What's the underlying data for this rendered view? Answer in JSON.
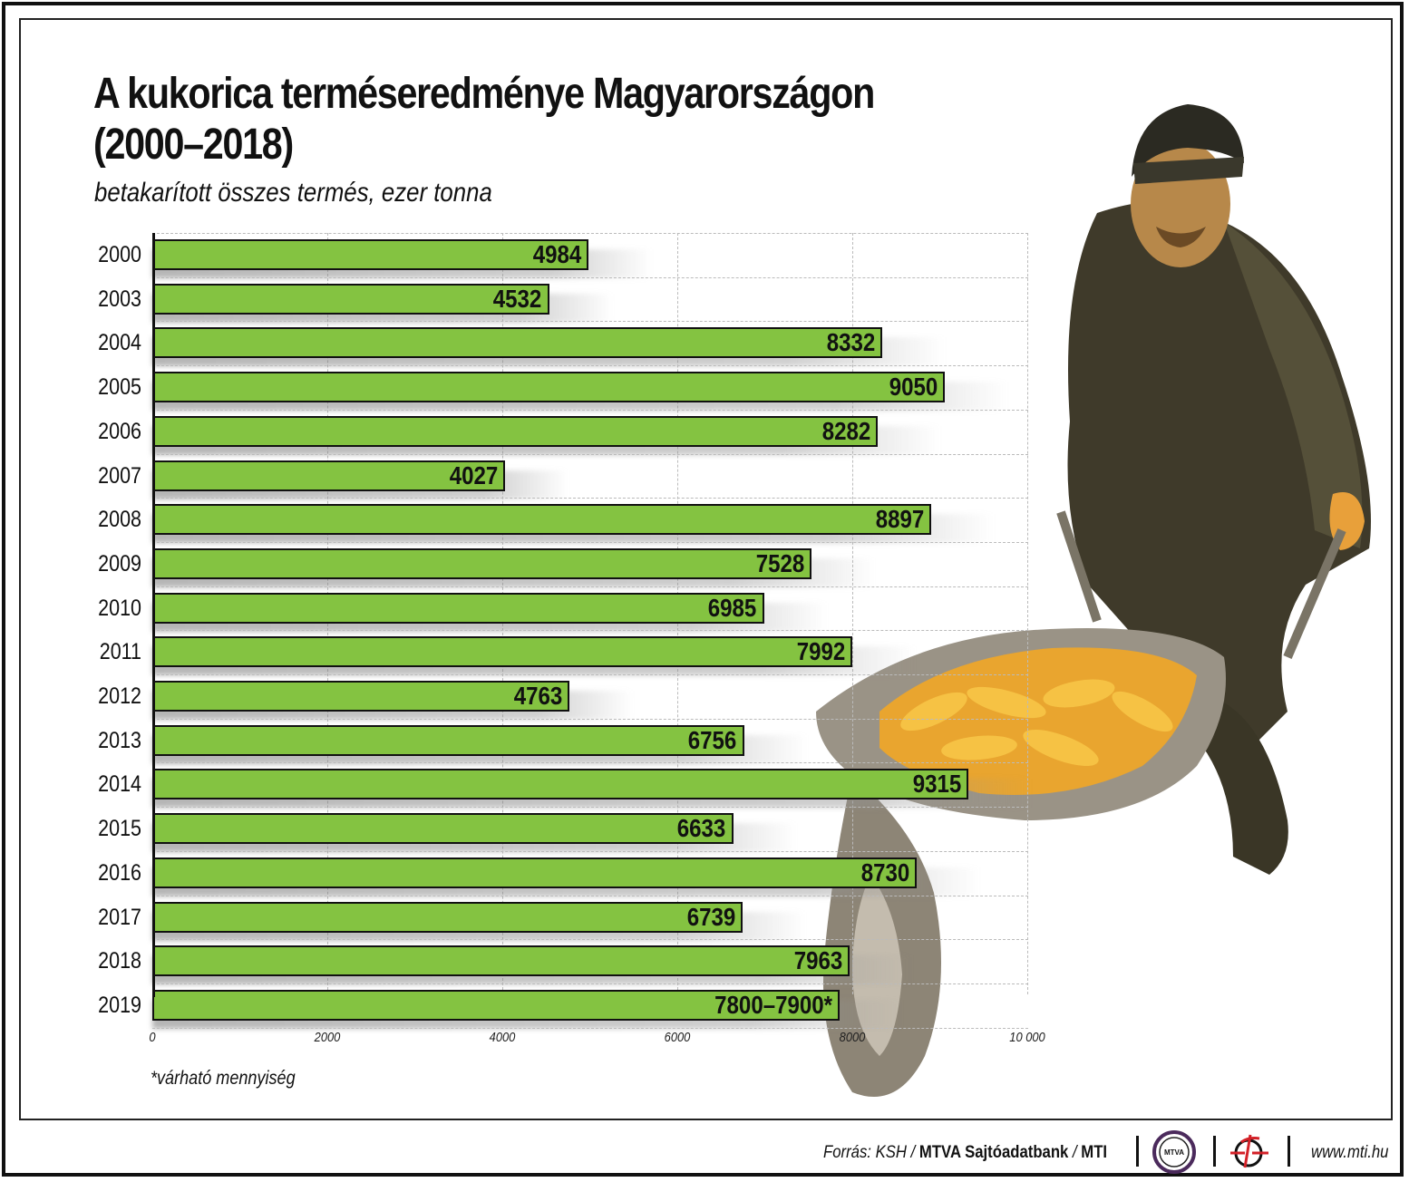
{
  "title_line1": "A kukorica terméseredménye Magyarországon",
  "title_line2": "(2000–2018)",
  "subtitle": "betakarított összes termés, ezer tonna",
  "footnote": "*várható mennyiség",
  "footer": {
    "source_prefix": "Forrás: KSH /",
    "source_bold1": "MTVA Sajtóadatbank",
    "source_mid": "/",
    "source_bold2": "MTI",
    "mtva_logo": "MTVA",
    "mti_logo_icon": "mti-logo-icon",
    "url": "www.mti.hu"
  },
  "colors": {
    "bar": "#84c341",
    "bar_border": "#111111",
    "mtva_ring": "#4b2a5c",
    "mti_logo": "#d32027"
  },
  "chart_data": {
    "type": "bar",
    "orientation": "horizontal",
    "title": "A kukorica terméseredménye Magyarországon (2000–2018)",
    "subtitle": "betakarított összes termés, ezer tonna",
    "categories": [
      "2000",
      "2003",
      "2004",
      "2005",
      "2006",
      "2007",
      "2008",
      "2009",
      "2010",
      "2011",
      "2012",
      "2013",
      "2014",
      "2015",
      "2016",
      "2017",
      "2018",
      "2019"
    ],
    "values": [
      4984,
      4532,
      8332,
      9050,
      8282,
      4027,
      8897,
      7528,
      6985,
      7992,
      4763,
      6756,
      9315,
      6633,
      8730,
      6739,
      7963,
      7850
    ],
    "labels": [
      "4984",
      "4532",
      "8332",
      "9050",
      "8282",
      "4027",
      "8897",
      "7528",
      "6985",
      "7992",
      "4763",
      "6756",
      "9315",
      "6633",
      "8730",
      "6739",
      "7963",
      "7800–7900*"
    ],
    "xticks": [
      "0",
      "2000",
      "4000",
      "6000",
      "8000",
      "10 000"
    ],
    "xlim": [
      0,
      10000
    ],
    "xlabel": "",
    "ylabel": "",
    "grid": true,
    "annotation": "*várható mennyiség"
  }
}
